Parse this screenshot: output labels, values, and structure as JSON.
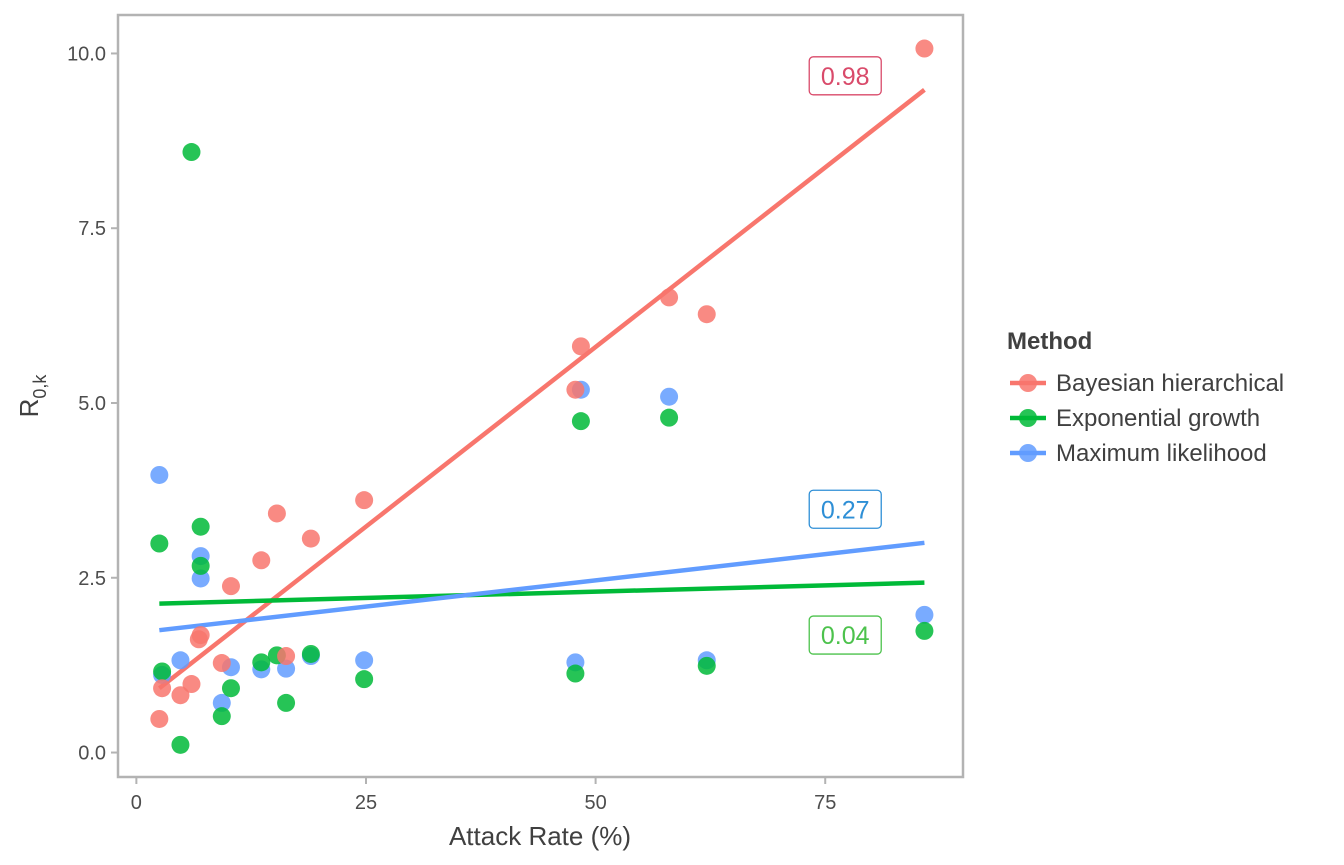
{
  "chart_data": {
    "type": "scatter",
    "title": "",
    "xlabel": "Attack Rate (%)",
    "ylabel_main": "R",
    "ylabel_sub": "0,k",
    "xlim": [
      -2,
      90
    ],
    "ylim": [
      -0.35,
      10.55
    ],
    "x_ticks": [
      0,
      25,
      50,
      75
    ],
    "x_tick_labels": [
      "0",
      "25",
      "50",
      "75"
    ],
    "y_ticks": [
      0,
      2.5,
      5,
      7.5,
      10
    ],
    "y_tick_labels": [
      "0.0",
      "2.5",
      "5.0",
      "7.5",
      "10.0"
    ],
    "grid": false,
    "legend": {
      "title": "Method",
      "placement": "right"
    },
    "series": [
      {
        "name": "Bayesian hierarchical",
        "color": "#F8766D",
        "points": [
          [
            2.5,
            0.48
          ],
          [
            2.8,
            0.92
          ],
          [
            4.8,
            0.82
          ],
          [
            6.0,
            0.98
          ],
          [
            6.8,
            1.62
          ],
          [
            7.0,
            1.68
          ],
          [
            9.3,
            1.28
          ],
          [
            10.3,
            2.38
          ],
          [
            13.6,
            2.75
          ],
          [
            15.3,
            3.42
          ],
          [
            16.3,
            1.38
          ],
          [
            19.0,
            3.06
          ],
          [
            24.8,
            3.61
          ],
          [
            47.8,
            5.19
          ],
          [
            48.4,
            5.81
          ],
          [
            58.0,
            6.51
          ],
          [
            62.1,
            6.27
          ],
          [
            85.8,
            10.07
          ]
        ],
        "fit": {
          "x": [
            2.5,
            85.8
          ],
          "y": [
            0.92,
            9.48
          ]
        },
        "r2_label": "0.98",
        "label_color": "#D94A6A",
        "label_pos": {
          "x": 75.0,
          "y": 9.68
        }
      },
      {
        "name": "Exponential growth",
        "color": "#00BA38",
        "points": [
          [
            2.5,
            2.99
          ],
          [
            2.8,
            1.16
          ],
          [
            4.8,
            0.11
          ],
          [
            6.0,
            8.59
          ],
          [
            7.0,
            2.67
          ],
          [
            7.0,
            3.23
          ],
          [
            9.3,
            0.52
          ],
          [
            10.3,
            0.92
          ],
          [
            13.6,
            1.29
          ],
          [
            15.3,
            1.39
          ],
          [
            16.3,
            0.71
          ],
          [
            19.0,
            1.41
          ],
          [
            24.8,
            1.05
          ],
          [
            47.8,
            1.13
          ],
          [
            48.4,
            4.74
          ],
          [
            58.0,
            4.79
          ],
          [
            62.1,
            1.24
          ],
          [
            85.8,
            1.74
          ]
        ],
        "fit": {
          "x": [
            2.5,
            85.8
          ],
          "y": [
            2.13,
            2.43
          ]
        },
        "r2_label": "0.04",
        "label_color": "#4CC24C",
        "label_pos": {
          "x": 75.0,
          "y": 1.68
        }
      },
      {
        "name": "Maximum likelihood",
        "color": "#619CFF",
        "points": [
          [
            2.5,
            3.97
          ],
          [
            2.8,
            1.11
          ],
          [
            4.8,
            1.32
          ],
          [
            7.0,
            2.81
          ],
          [
            7.0,
            2.49
          ],
          [
            9.3,
            0.71
          ],
          [
            10.3,
            1.22
          ],
          [
            13.6,
            1.19
          ],
          [
            16.3,
            1.2
          ],
          [
            19.0,
            1.38
          ],
          [
            24.8,
            1.32
          ],
          [
            47.8,
            1.29
          ],
          [
            48.4,
            5.19
          ],
          [
            58.0,
            5.09
          ],
          [
            62.1,
            1.32
          ],
          [
            85.8,
            1.97
          ]
        ],
        "fit": {
          "x": [
            2.5,
            85.8
          ],
          "y": [
            1.75,
            3.0
          ]
        },
        "r2_label": "0.27",
        "label_color": "#2E8FD6",
        "label_pos": {
          "x": 75.0,
          "y": 3.48
        }
      }
    ]
  }
}
